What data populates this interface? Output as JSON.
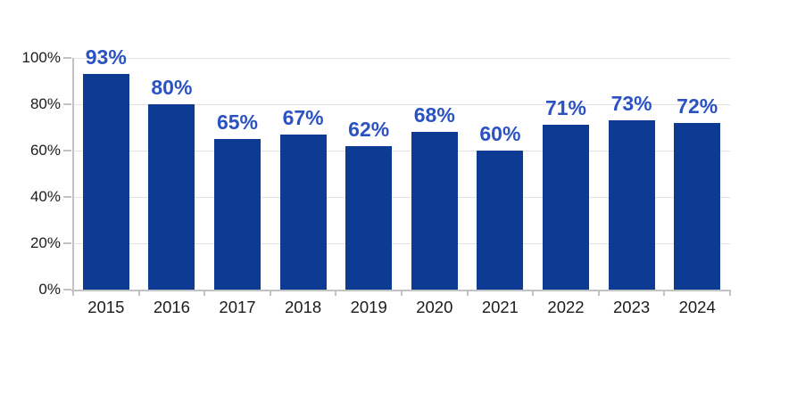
{
  "chart_data": {
    "type": "bar",
    "categories": [
      "2015",
      "2016",
      "2017",
      "2018",
      "2019",
      "2020",
      "2021",
      "2022",
      "2023",
      "2024"
    ],
    "values": [
      93,
      80,
      65,
      67,
      62,
      68,
      60,
      71,
      73,
      72
    ],
    "data_labels": [
      "93%",
      "80%",
      "65%",
      "67%",
      "62%",
      "68%",
      "60%",
      "71%",
      "73%",
      "72%"
    ],
    "y_ticks": [
      "0%",
      "20%",
      "40%",
      "60%",
      "80%",
      "100%"
    ],
    "y_tick_values": [
      0,
      20,
      40,
      60,
      80,
      100
    ],
    "xlabel": "",
    "ylabel": "",
    "ylim": [
      0,
      100
    ],
    "grid": "horizontal",
    "legend": "none",
    "colors": {
      "bar": "#0d3a93",
      "data_label": "#2a52c2",
      "axis_text": "#1c1c1c",
      "gridline": "#e3e3e3",
      "axis_line": "#c2c2c2",
      "background": "#ffffff"
    }
  }
}
